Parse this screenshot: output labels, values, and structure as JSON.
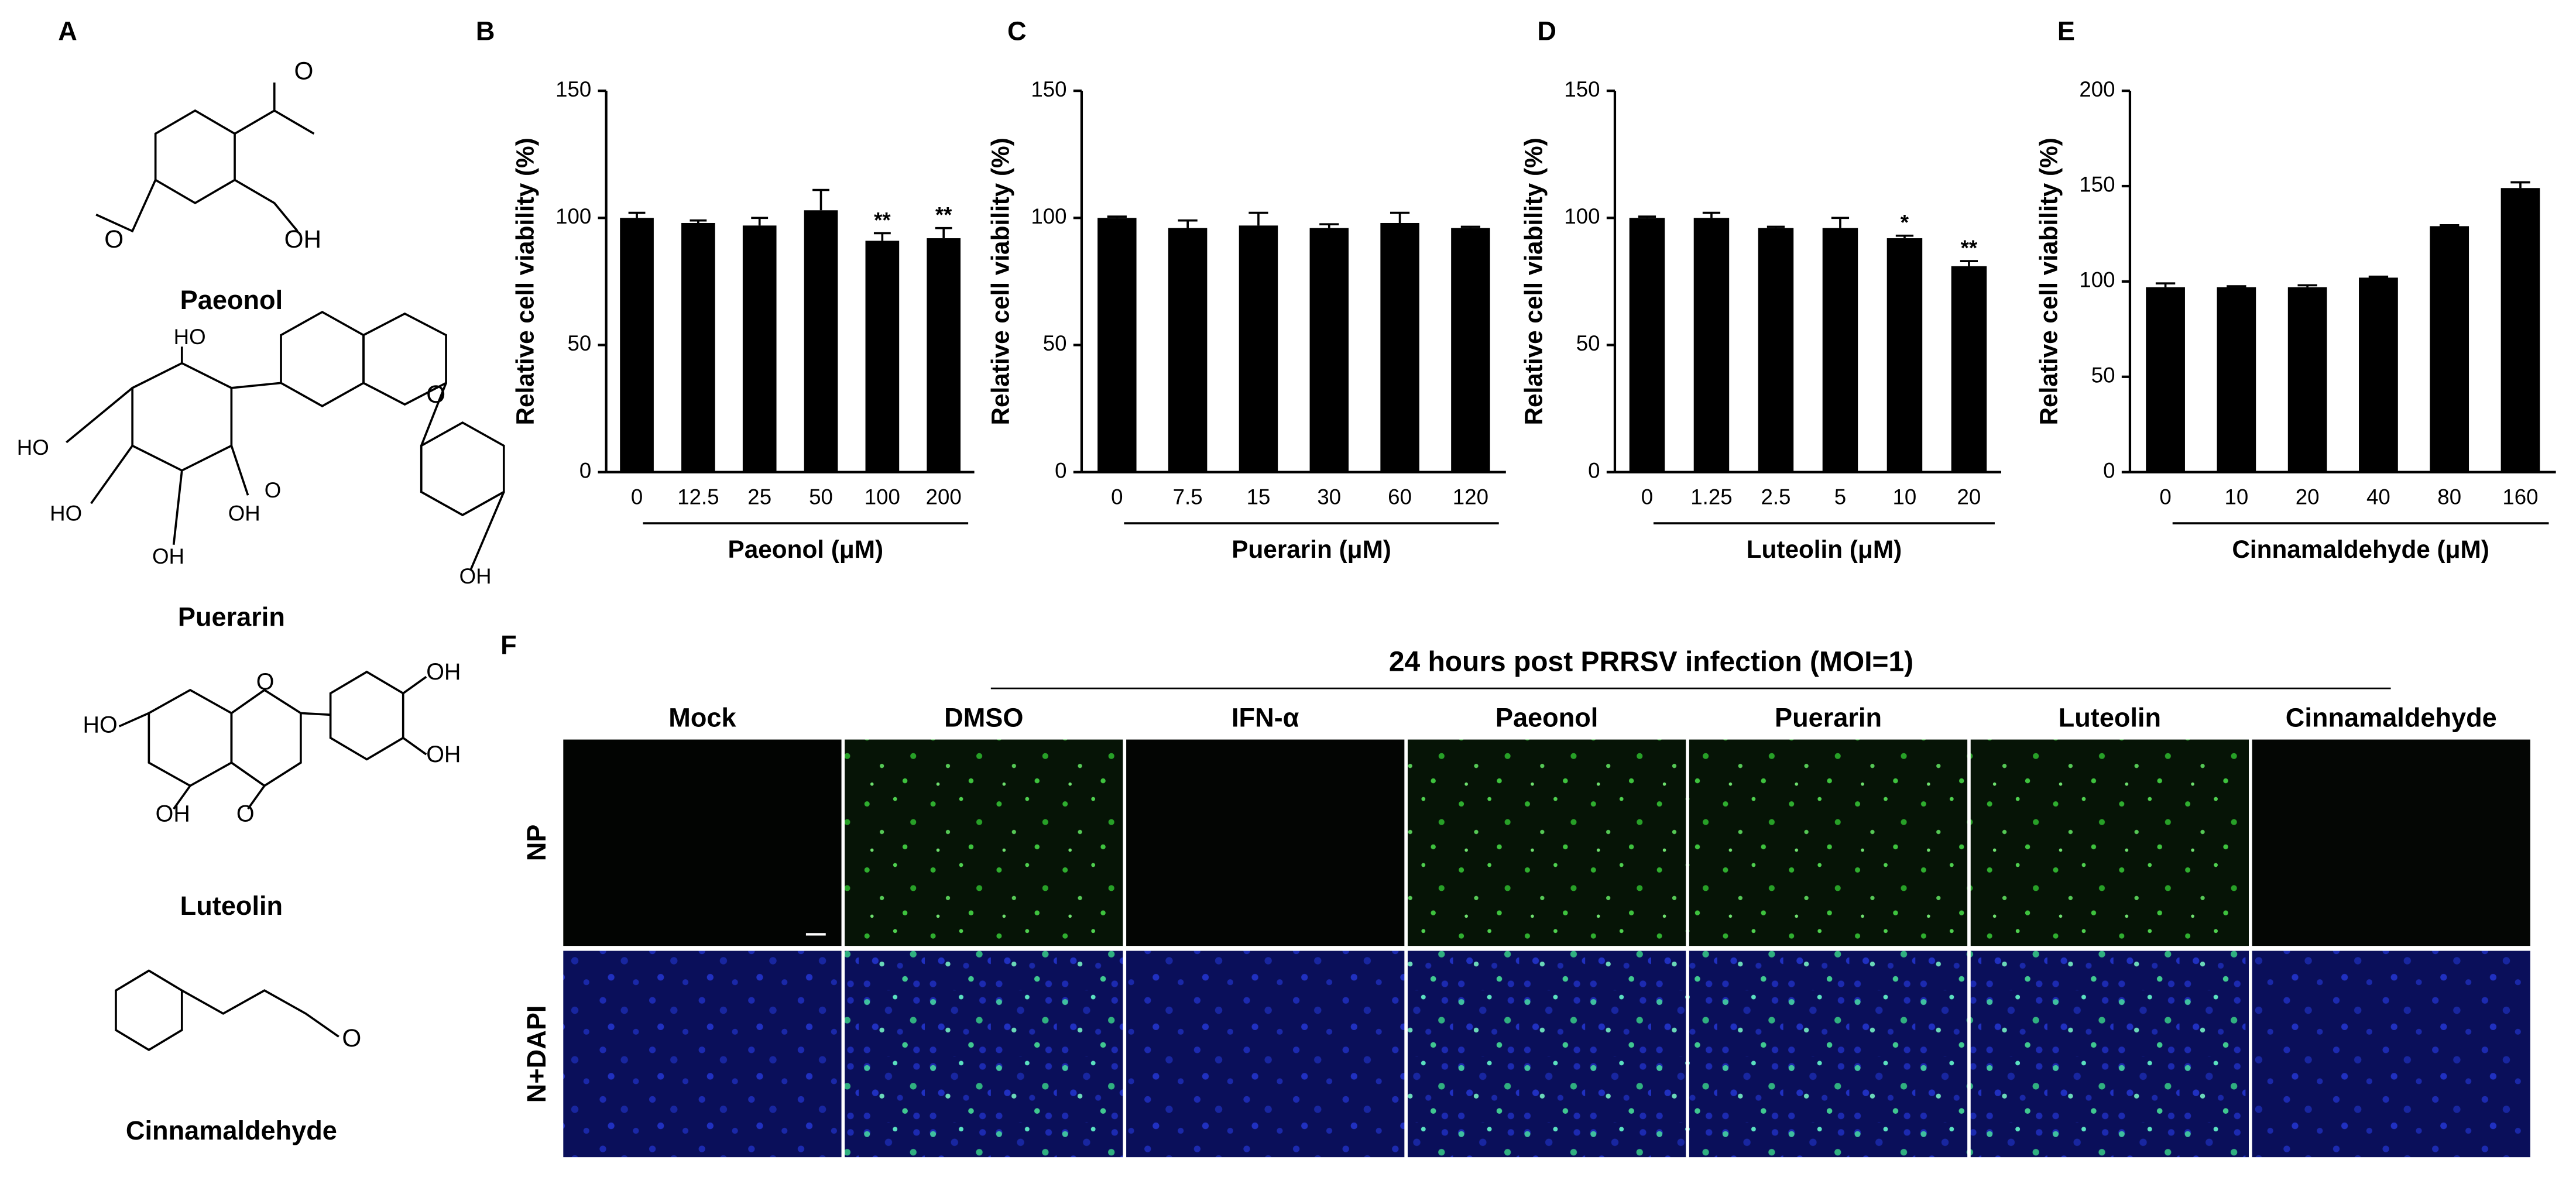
{
  "panel_labels": [
    "A",
    "B",
    "C",
    "D",
    "E",
    "F"
  ],
  "structures": [
    {
      "name": "Paeonol",
      "atoms": [
        "O",
        "O",
        "OH"
      ]
    },
    {
      "name": "Puerarin",
      "atoms": [
        "HO",
        "O",
        "HO",
        "HO",
        "OH",
        "O",
        "OH",
        "OH"
      ]
    },
    {
      "name": "Luteolin",
      "atoms": [
        "OH",
        "HO",
        "O",
        "OH",
        "OH",
        "O"
      ]
    },
    {
      "name": "Cinnamaldehyde",
      "atoms": [
        "O"
      ]
    }
  ],
  "chart_data": [
    {
      "type": "bar",
      "ylabel": "Relative cell viability (%)",
      "xlabel": "Paeonol (μM)",
      "categories": [
        "0",
        "12.5",
        "25",
        "50",
        "100",
        "200"
      ],
      "values": [
        100,
        98,
        97,
        103,
        91,
        92
      ],
      "errors": [
        2,
        1,
        3,
        8,
        3,
        4
      ],
      "significance": [
        null,
        null,
        null,
        null,
        "**",
        "**"
      ],
      "color": "#000000",
      "ylim": [
        0,
        150
      ],
      "yticks": [
        0,
        50,
        100,
        150
      ]
    },
    {
      "type": "bar",
      "ylabel": "Relative cell viability (%)",
      "xlabel": "Puerarin (μM)",
      "categories": [
        "0",
        "7.5",
        "15",
        "30",
        "60",
        "120"
      ],
      "values": [
        100,
        96,
        97,
        96,
        98,
        96
      ],
      "errors": [
        0.5,
        3,
        5,
        1.5,
        4,
        0.5
      ],
      "color": "#000000",
      "ylim": [
        0,
        150
      ],
      "yticks": [
        0,
        50,
        100,
        150
      ]
    },
    {
      "type": "bar",
      "ylabel": "Relative cell viability (%)",
      "xlabel": "Luteolin (μM)",
      "categories": [
        "0",
        "1.25",
        "2.5",
        "5",
        "10",
        "20"
      ],
      "values": [
        100,
        100,
        96,
        96,
        92,
        81
      ],
      "errors": [
        0.5,
        2,
        0.5,
        4,
        1,
        2
      ],
      "significance": [
        null,
        null,
        null,
        null,
        "*",
        "**"
      ],
      "color": "#000000",
      "ylim": [
        0,
        150
      ],
      "yticks": [
        0,
        50,
        100,
        150
      ]
    },
    {
      "type": "bar",
      "ylabel": "Relative cell viability (%)",
      "xlabel": "Cinnamaldehyde (μM)",
      "categories": [
        "0",
        "10",
        "20",
        "40",
        "80",
        "160"
      ],
      "values": [
        97,
        97,
        97,
        102,
        129,
        149
      ],
      "errors": [
        2,
        0.5,
        1,
        0.5,
        0.5,
        3
      ],
      "color": "#000000",
      "ylim": [
        0,
        200
      ],
      "yticks": [
        0,
        50,
        100,
        150,
        200
      ]
    }
  ],
  "microscopy": {
    "title": "24 hours post PRRSV infection (MOI=1)",
    "columns": [
      "Mock",
      "DMSO",
      "IFN-α",
      "Paeonol",
      "Puerarin",
      "Luteolin",
      "Cinnamaldehyde"
    ],
    "rows": [
      "NP",
      "N+DAPI"
    ]
  }
}
